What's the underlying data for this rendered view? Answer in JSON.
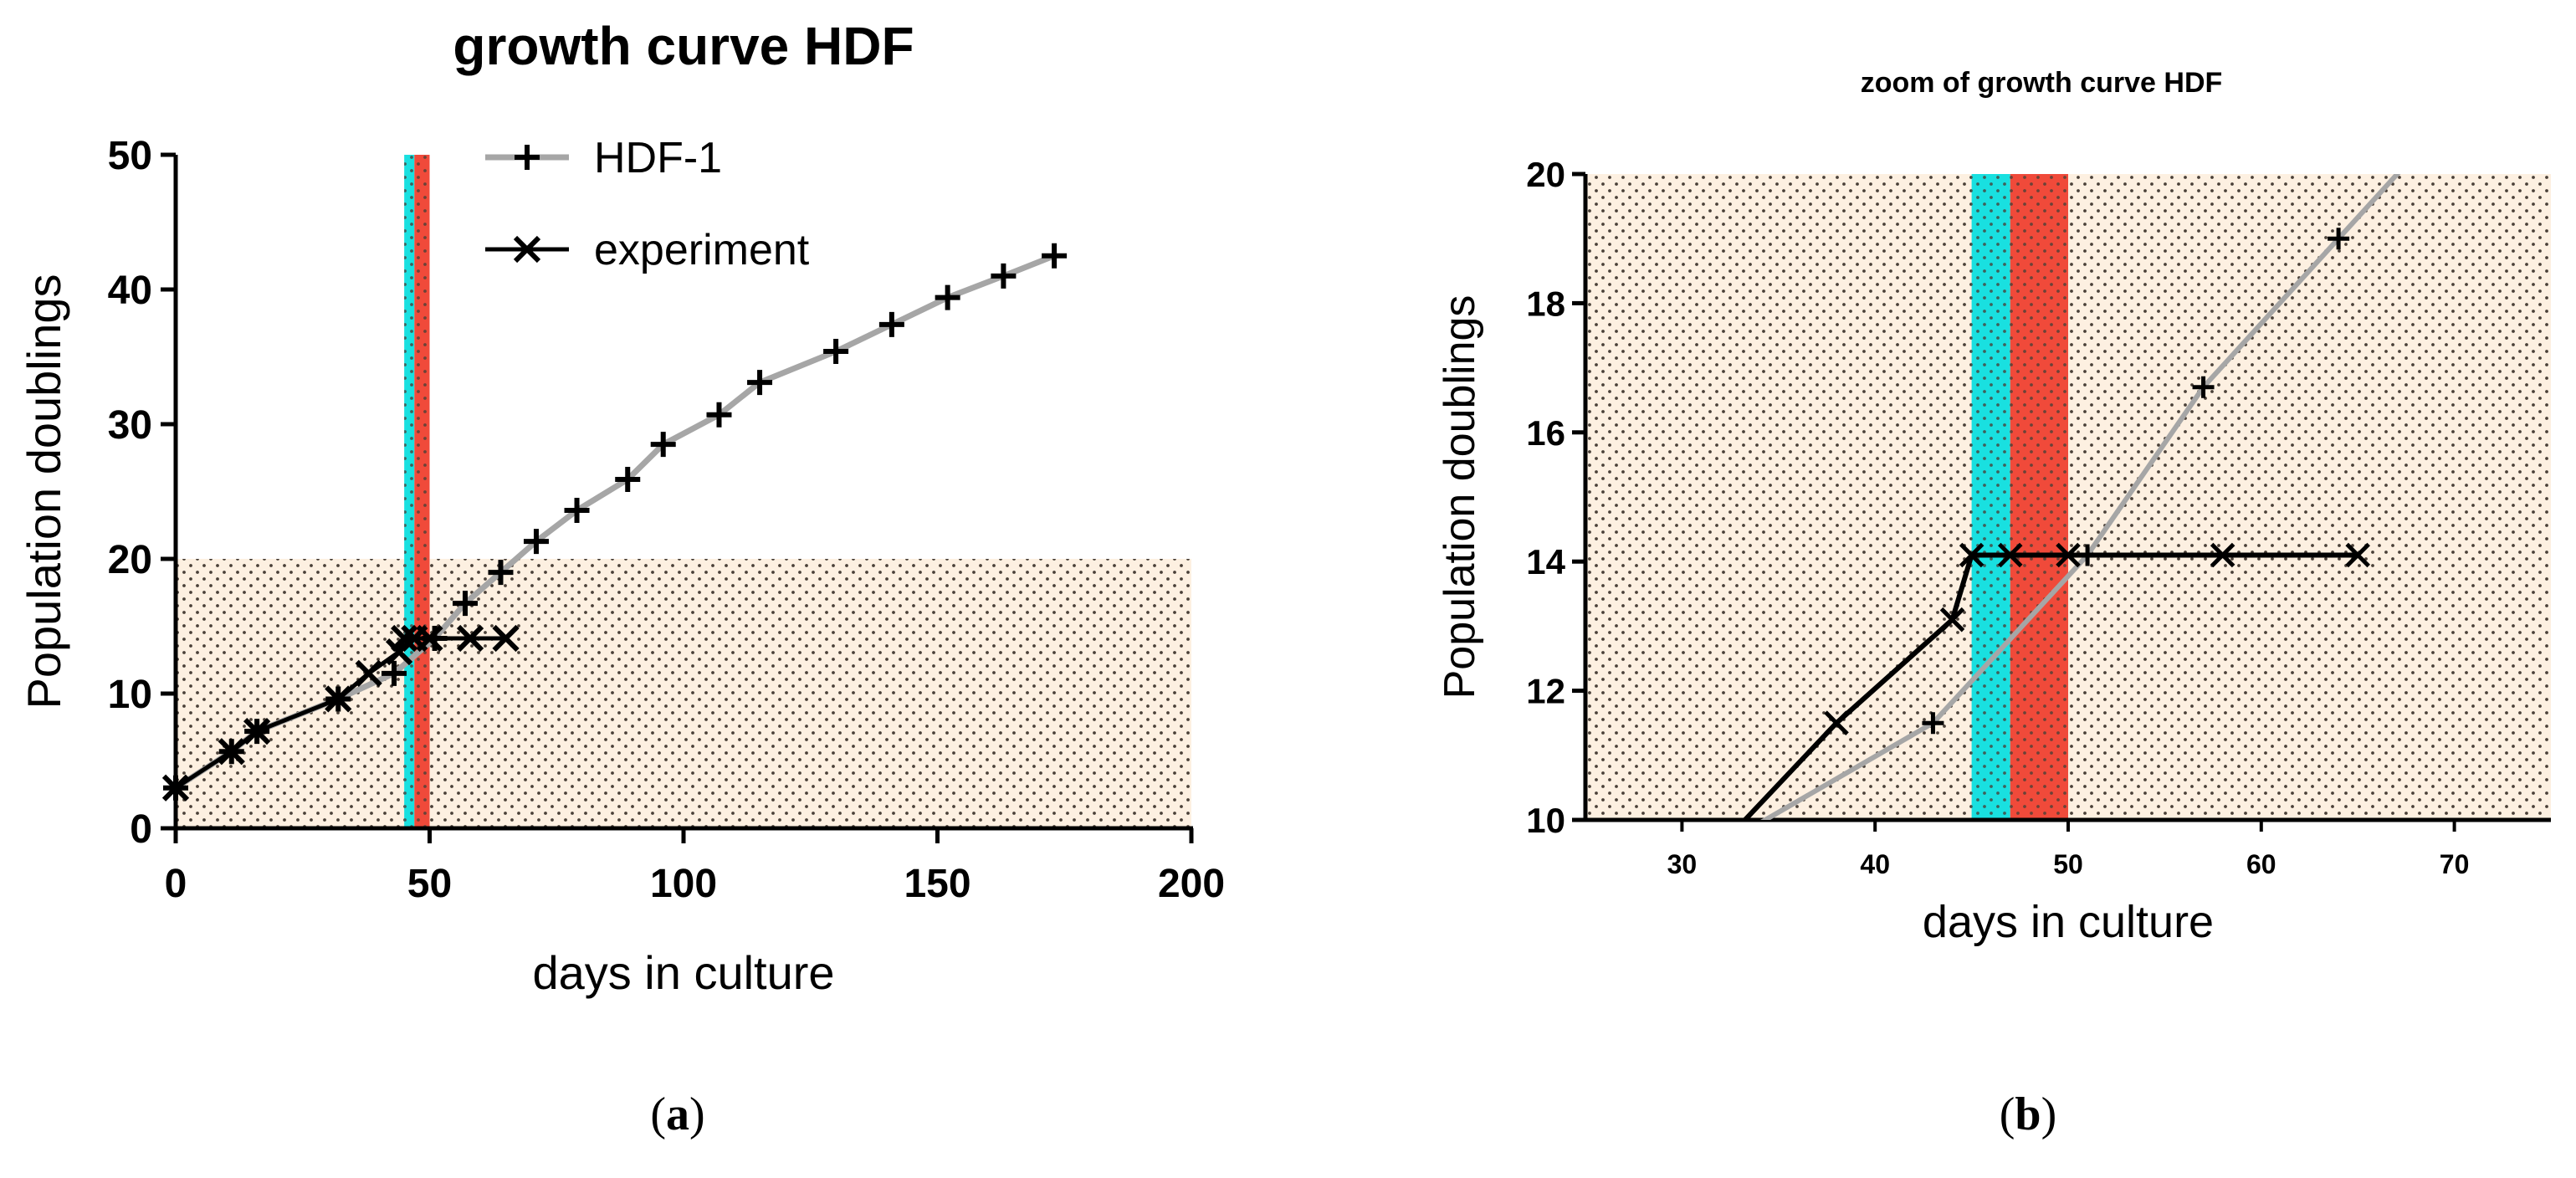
{
  "captions": {
    "a": "a",
    "b": "b"
  },
  "colors": {
    "hdf1_line": "#a6a6a6",
    "experiment_line": "#000000",
    "cyan_band": "#19e0e0",
    "red_band": "#f04a3a",
    "zoom_region": "#fdf0e1",
    "dot_pattern": "#4a4038"
  },
  "chart_data": [
    {
      "type": "line",
      "title": "growth curve HDF",
      "xlabel": "days in culture",
      "ylabel": "Population doublings",
      "xlim": [
        0,
        200
      ],
      "ylim": [
        0,
        50
      ],
      "xticks": [
        "0",
        "50",
        "100",
        "150",
        "200"
      ],
      "yticks": [
        "0",
        "10",
        "20",
        "30",
        "40",
        "50"
      ],
      "legend_position": "top-center",
      "shaded_regions": [
        {
          "kind": "zoom-area",
          "x": [
            0,
            200
          ],
          "y": [
            0,
            20
          ]
        },
        {
          "kind": "band",
          "color": "cyan",
          "x": [
            45,
            47
          ]
        },
        {
          "kind": "band",
          "color": "red",
          "x": [
            47,
            50
          ]
        }
      ],
      "series": [
        {
          "name": "HDF-1",
          "marker": "plus",
          "x": [
            0,
            11,
            16,
            32,
            43,
            51,
            57,
            64,
            71,
            79,
            89,
            96,
            107,
            115,
            130,
            141,
            152,
            163,
            173
          ],
          "y": [
            3.0,
            5.7,
            7.2,
            9.6,
            11.5,
            14.1,
            16.7,
            19.0,
            21.3,
            23.6,
            25.9,
            28.5,
            30.7,
            33.1,
            35.4,
            37.4,
            39.4,
            41.0,
            42.5
          ]
        },
        {
          "name": "experiment",
          "marker": "x",
          "x": [
            0,
            11,
            16,
            32,
            38,
            44,
            45,
            47,
            50,
            58,
            65
          ],
          "y": [
            3.0,
            5.7,
            7.2,
            9.6,
            11.5,
            13.1,
            14.1,
            14.1,
            14.1,
            14.1,
            14.1
          ]
        }
      ]
    },
    {
      "type": "line",
      "title": "zoom of growth curve HDF",
      "xlabel": "days in culture",
      "ylabel": "Population doublings",
      "xlim": [
        25,
        75
      ],
      "ylim": [
        10,
        20
      ],
      "xticks": [
        "30",
        "40",
        "50",
        "60",
        "70"
      ],
      "yticks": [
        "10",
        "12",
        "14",
        "16",
        "18",
        "20"
      ],
      "shaded_regions": [
        {
          "kind": "zoom-area",
          "x": [
            25,
            75
          ],
          "y": [
            10,
            20
          ]
        },
        {
          "kind": "band",
          "color": "cyan",
          "x": [
            45,
            47
          ]
        },
        {
          "kind": "band",
          "color": "red",
          "x": [
            47,
            50
          ]
        }
      ],
      "series": [
        {
          "name": "HDF-1",
          "marker": "plus",
          "x": [
            32,
            43,
            51,
            57,
            64,
            71
          ],
          "y": [
            9.6,
            11.5,
            14.1,
            16.7,
            19.0,
            21.3
          ]
        },
        {
          "name": "experiment",
          "marker": "x",
          "x": [
            32,
            38,
            44,
            45,
            47,
            50,
            58,
            65
          ],
          "y": [
            9.6,
            11.5,
            13.1,
            14.1,
            14.1,
            14.1,
            14.1,
            14.1
          ]
        }
      ]
    }
  ]
}
